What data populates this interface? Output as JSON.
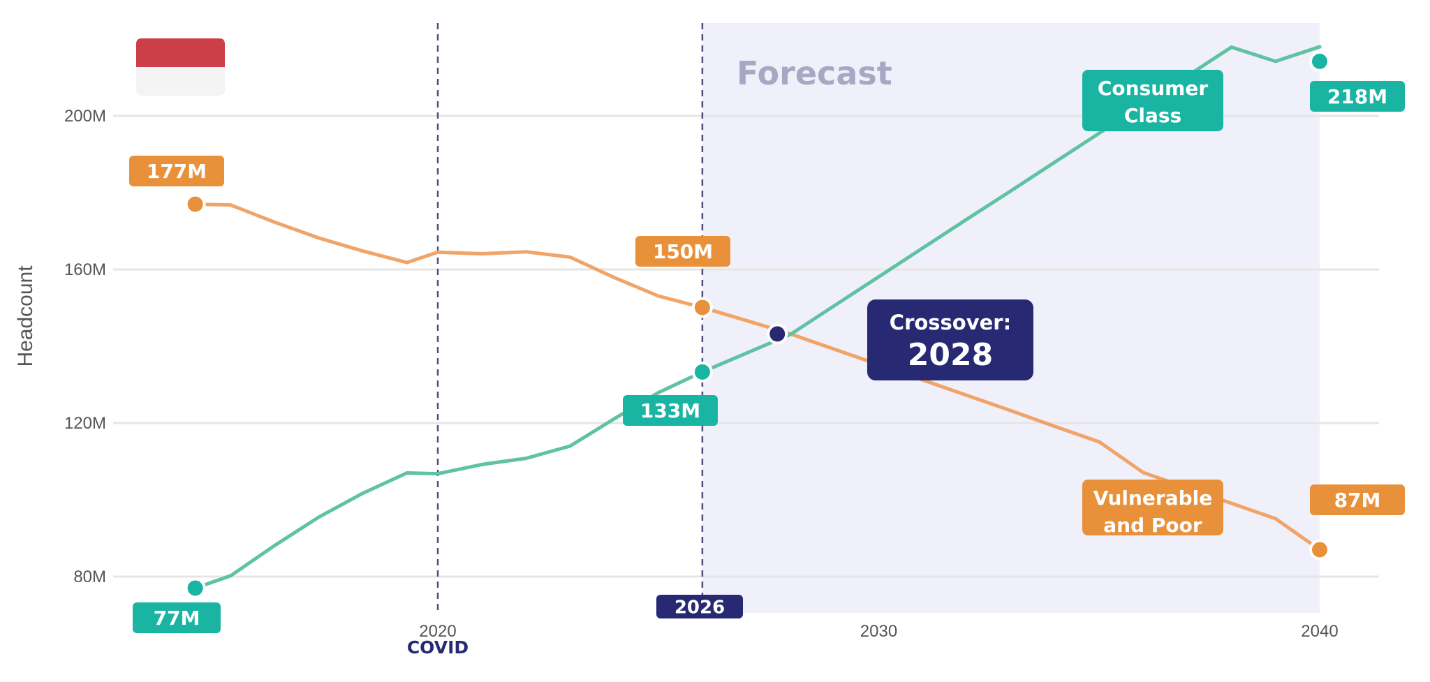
{
  "chart_data": {
    "type": "line",
    "ylabel": "Headcount",
    "ylim": [
      70,
      222
    ],
    "xlim": [
      2012.6,
      2042.6
    ],
    "y_ticks": [
      {
        "value": 80,
        "label": "80M"
      },
      {
        "value": 120,
        "label": "120M"
      },
      {
        "value": 160,
        "label": "160M"
      },
      {
        "value": 200,
        "label": "200M"
      }
    ],
    "x_ticks": [
      {
        "value": 2020,
        "label": "2020"
      },
      {
        "value": 2030,
        "label": "2030"
      },
      {
        "value": 2040,
        "label": "2040"
      }
    ],
    "grid": true,
    "series": [
      {
        "name": "Vulnerable and Poor",
        "color": "#f0a468",
        "marker_color": "#e8913a",
        "x": [
          2014.5,
          2015.3,
          2016.3,
          2017.3,
          2018.3,
          2019.3,
          2020,
          2021,
          2022,
          2023,
          2024,
          2025,
          2026,
          2027,
          2028,
          2029,
          2030,
          2031,
          2032,
          2033,
          2034,
          2035,
          2036,
          2037,
          2038,
          2039,
          2040
        ],
        "y": [
          177,
          176.8,
          172.3,
          168.2,
          164.8,
          161.8,
          164.5,
          164.1,
          164.6,
          163.2,
          157.9,
          153.1,
          150.1,
          146.7,
          143.2,
          139.2,
          135.2,
          131.2,
          127.2,
          123.2,
          119.1,
          115.1,
          107.1,
          103.1,
          99.1,
          95.1,
          87
        ]
      },
      {
        "name": "Consumer Class",
        "color": "#5fc2a2",
        "marker_color": "#1ab4a3",
        "x": [
          2014.5,
          2015.3,
          2016.3,
          2017.3,
          2018.3,
          2019.3,
          2020,
          2021,
          2022,
          2023,
          2024,
          2025,
          2026,
          2027,
          2028,
          2029,
          2030,
          2031,
          2032,
          2033,
          2034,
          2035,
          2036,
          2037,
          2038,
          2039,
          2040
        ],
        "y": [
          77,
          80.2,
          88.1,
          95.5,
          101.7,
          107,
          106.8,
          109.2,
          110.8,
          114,
          121.1,
          127.9,
          133.3,
          138.2,
          143.1,
          150.6,
          158.1,
          165.6,
          173.1,
          180.5,
          188,
          195.5,
          203,
          210.4,
          217.9,
          214.2,
          218
        ]
      }
    ],
    "forecast": {
      "label": "Forecast",
      "from": 2026,
      "to": 2040
    },
    "vlines": [
      {
        "x": 2020,
        "label": "COVID"
      },
      {
        "x": 2026,
        "label": "2026"
      }
    ],
    "crossover": {
      "x": 2027.7,
      "y": 143.2,
      "title": "Crossover:",
      "year": "2028"
    },
    "value_labels": {
      "vp_start": "177M",
      "vp_2026": "150M",
      "vp_end": "87M",
      "cc_start": "77M",
      "cc_2026": "133M",
      "cc_end": "218M"
    },
    "series_labels": {
      "consumer": [
        "Consumer",
        "Class"
      ],
      "vulnerable": [
        "Vulnerable",
        "and Poor"
      ]
    },
    "flag": {
      "top": "#cc3e48",
      "bottom": "#f4f4f4",
      "alt": "Indonesia flag"
    },
    "colors": {
      "orange_box": "#e8913a",
      "teal_box": "#1ab4a3",
      "navy": "#272a72",
      "forecast_bg": "#f0f0fb",
      "forecast_text": "#a8a8c4",
      "grid": "#e6e6e6"
    }
  }
}
